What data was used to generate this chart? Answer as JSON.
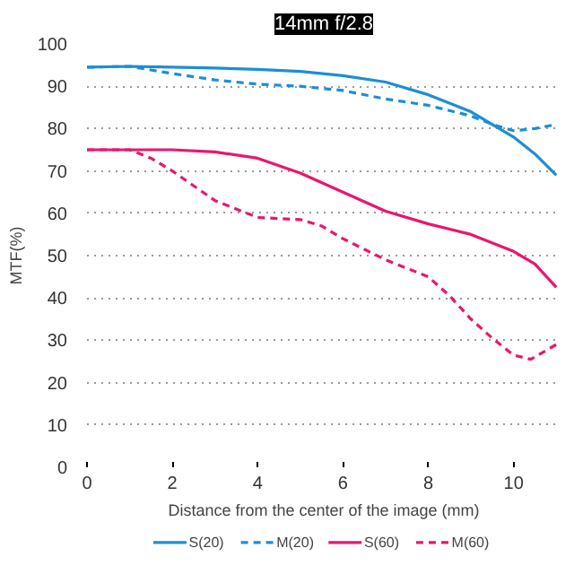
{
  "chart_data": {
    "type": "line",
    "title": "14mm f/2.8",
    "xlabel": "Distance from the center of the image (mm)",
    "ylabel": "MTF(%)",
    "xlim": [
      0,
      11.1
    ],
    "xticks": [
      0,
      2,
      4,
      6,
      8,
      10
    ],
    "ylim": [
      0,
      100
    ],
    "yticks": [
      0,
      10,
      20,
      30,
      40,
      50,
      60,
      70,
      80,
      90,
      100
    ],
    "grid": "y",
    "legend": "bottom",
    "series": [
      {
        "name": "S(20)",
        "color": "#1a8fd6",
        "line_style": "solid",
        "x": [
          0,
          1,
          2,
          3,
          4,
          5,
          6,
          7,
          8,
          9,
          10,
          10.5,
          11
        ],
        "values": [
          94.5,
          94.7,
          94.5,
          94.3,
          94,
          93.5,
          92.5,
          91,
          88,
          84,
          78,
          74,
          69
        ]
      },
      {
        "name": "M(20)",
        "color": "#1a8fd6",
        "line_style": "dashed",
        "x": [
          0,
          1,
          2,
          3,
          4,
          5,
          6,
          7,
          8,
          9,
          9.5,
          10,
          10.5,
          11
        ],
        "values": [
          94.5,
          94.7,
          93,
          91.5,
          90.5,
          90,
          89,
          87,
          85.5,
          83,
          81,
          79.5,
          80,
          81
        ]
      },
      {
        "name": "S(60)",
        "color": "#e8176e",
        "line_style": "solid",
        "x": [
          0,
          1,
          2,
          3,
          4,
          5,
          6,
          7,
          8,
          9,
          10,
          10.5,
          11
        ],
        "values": [
          75,
          75,
          75,
          74.5,
          73,
          69.5,
          65,
          60.5,
          57.5,
          55,
          51,
          48,
          42.5
        ]
      },
      {
        "name": "M(60)",
        "color": "#e8176e",
        "line_style": "dashed",
        "x": [
          0,
          1,
          1.5,
          2,
          3,
          4,
          5,
          5.5,
          6,
          7,
          8,
          8.5,
          9,
          9.5,
          10,
          10.4,
          11
        ],
        "values": [
          75,
          75,
          73,
          70,
          63,
          59,
          58.5,
          57,
          54,
          49,
          45,
          40.5,
          35,
          30.5,
          26.5,
          25.5,
          29
        ]
      }
    ]
  }
}
